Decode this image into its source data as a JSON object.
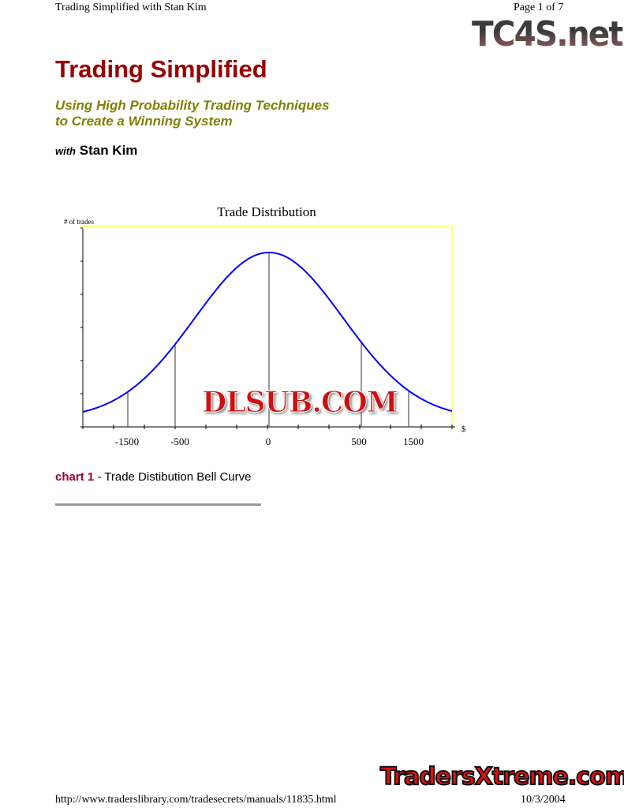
{
  "header": {
    "left": "Trading Simplified with Stan Kim",
    "right": "Page 1 of 7"
  },
  "watermarks": {
    "top": "TC4S.net",
    "chart": "DLSUB.COM",
    "bottom": "TradersXtreme.com"
  },
  "title": "Trading Simplified",
  "subtitle": {
    "line1": "Using High Probability Trading Techniques",
    "line2": "to Create a Winning System"
  },
  "byline": {
    "with": "with",
    "name": "Stan Kim"
  },
  "chart_data": {
    "type": "line",
    "title": "Trade Distribution",
    "ylabel": "# of trades",
    "xlabel": "$",
    "tick_labels": [
      "-1500",
      "-500",
      "0",
      "500",
      "1500"
    ],
    "series_color": "#0000ff",
    "frame_color": "#ffff00",
    "shape": "bell curve",
    "grid": false
  },
  "caption": {
    "label": "chart 1",
    "text": "- Trade Distibution Bell Curve"
  },
  "footer": {
    "url": "http://www.traderslibrary.com/tradesecrets/manuals/11835.html",
    "date": "10/3/2004"
  }
}
